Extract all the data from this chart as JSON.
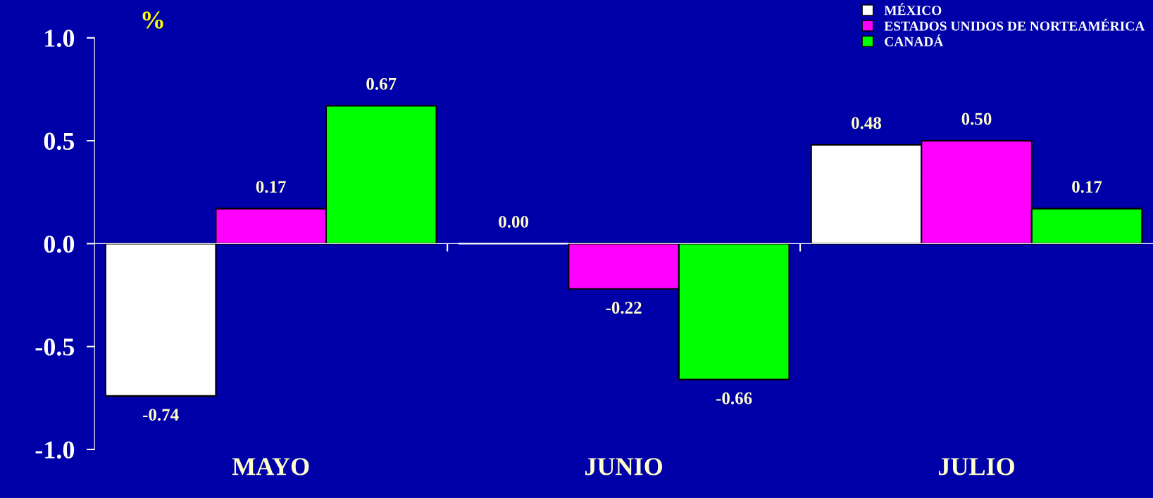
{
  "chart_data": {
    "type": "bar",
    "ylabel": "%",
    "categories": [
      "MAYO",
      "JUNIO",
      "JULIO"
    ],
    "series": [
      {
        "name": "MÉXICO",
        "color": "#ffffff",
        "values": [
          -0.74,
          0.0,
          0.48
        ],
        "value_labels": [
          "-0.74",
          "0.00",
          "0.48"
        ]
      },
      {
        "name": "ESTADOS UNIDOS DE NORTEAMÉRICA",
        "color": "#ff00ff",
        "values": [
          0.17,
          -0.22,
          0.5
        ],
        "value_labels": [
          "0.17",
          "-0.22",
          "0.50"
        ]
      },
      {
        "name": "CANADÁ",
        "color": "#00ff00",
        "values": [
          0.67,
          -0.66,
          0.17
        ],
        "value_labels": [
          "0.67",
          "-0.66",
          "0.17"
        ]
      }
    ],
    "ylim": [
      -1.0,
      1.0
    ],
    "yticks": [
      {
        "value": 1.0,
        "label": "1.0"
      },
      0.5,
      {
        "value": 0.0,
        "label": "0.0"
      },
      -0.5,
      {
        "value": -1.0,
        "label": "-1.0"
      }
    ],
    "legend": "top right"
  }
}
